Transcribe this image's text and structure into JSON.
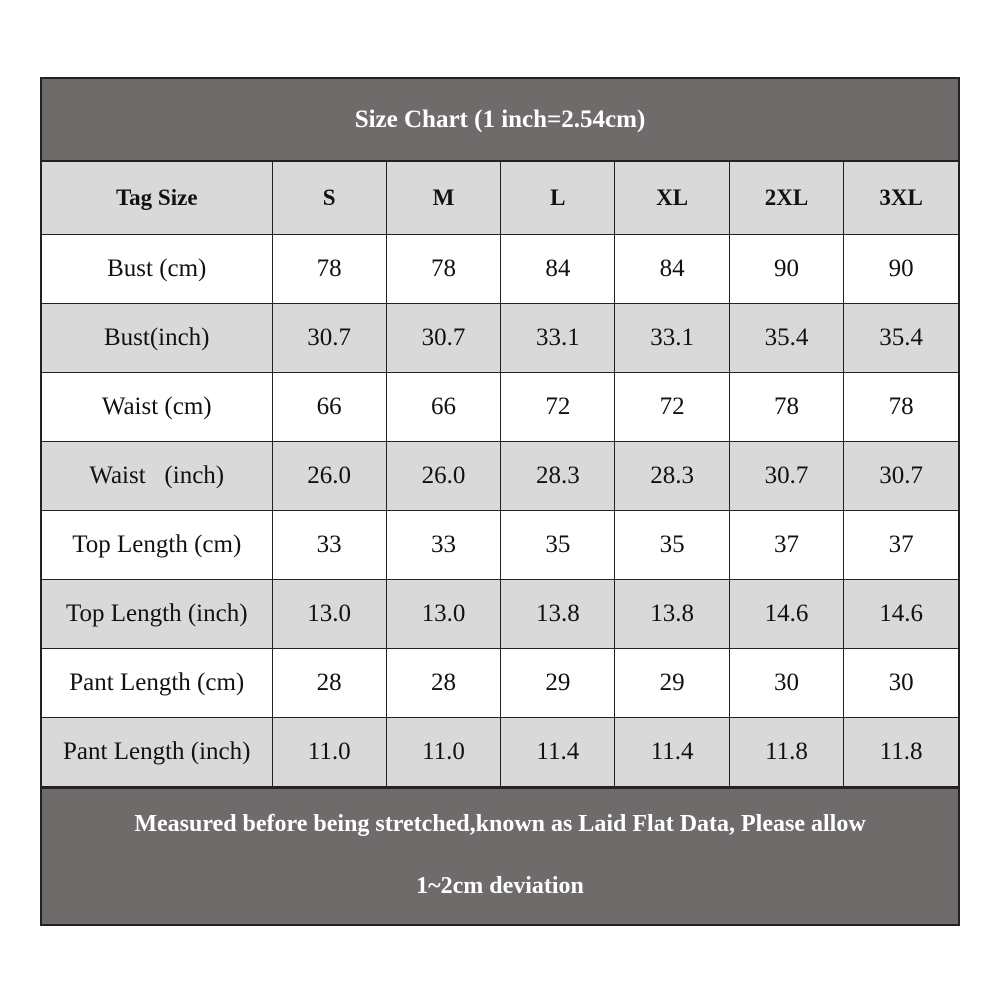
{
  "title": "Size Chart (1 inch=2.54cm)",
  "header": [
    "Tag Size",
    "S",
    "M",
    "L",
    "XL",
    "2XL",
    "3XL"
  ],
  "rows": [
    [
      "Bust (cm)",
      "78",
      "78",
      "84",
      "84",
      "90",
      "90"
    ],
    [
      "Bust(inch)",
      "30.7",
      "30.7",
      "33.1",
      "33.1",
      "35.4",
      "35.4"
    ],
    [
      "Waist (cm)",
      "66",
      "66",
      "72",
      "72",
      "78",
      "78"
    ],
    [
      "Waist   (inch)",
      "26.0",
      "26.0",
      "28.3",
      "28.3",
      "30.7",
      "30.7"
    ],
    [
      "Top Length (cm)",
      "33",
      "33",
      "35",
      "35",
      "37",
      "37"
    ],
    [
      "Top Length (inch)",
      "13.0",
      "13.0",
      "13.8",
      "13.8",
      "14.6",
      "14.6"
    ],
    [
      "Pant Length (cm)",
      "28",
      "28",
      "29",
      "29",
      "30",
      "30"
    ],
    [
      "Pant Length (inch)",
      "11.0",
      "11.0",
      "11.4",
      "11.4",
      "11.8",
      "11.8"
    ]
  ],
  "footer": {
    "line1": "Measured before being stretched,known as Laid Flat Data, Please allow",
    "line2": "1~2cm deviation"
  },
  "colors": {
    "banner": "#6f6b6a",
    "alt_row": "#d9d9d9"
  }
}
